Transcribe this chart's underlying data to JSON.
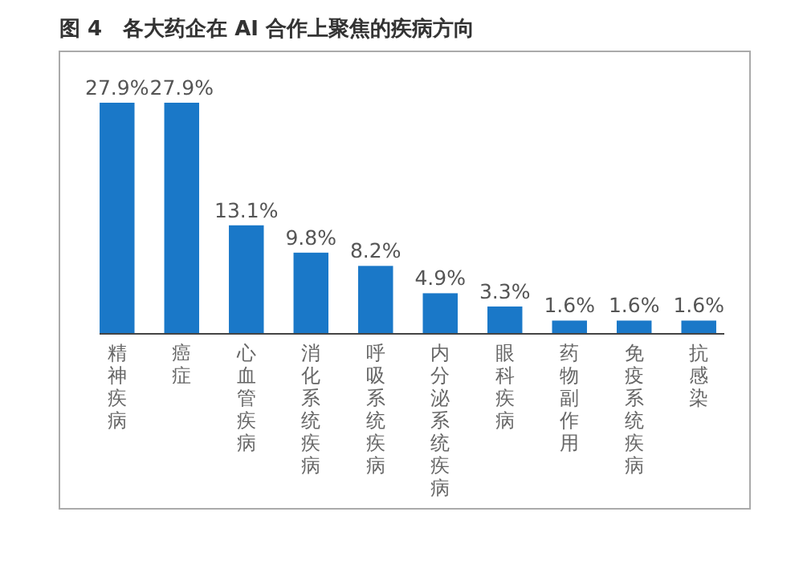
{
  "chart_data": {
    "type": "bar",
    "title": "图 4　各大药企在 AI 合作上聚焦的疾病方向",
    "categories": [
      "精神疾病",
      "癌症",
      "心血管疾病",
      "消化系统疾病",
      "呼吸系统疾病",
      "内分泌系统疾病",
      "眼科疾病",
      "药物副作用",
      "免疫系统疾病",
      "抗感染"
    ],
    "values": [
      27.9,
      27.9,
      13.1,
      9.8,
      8.2,
      4.9,
      3.3,
      1.6,
      1.6,
      1.6
    ],
    "value_labels": [
      "27.9%",
      "27.9%",
      "13.1%",
      "9.8%",
      "8.2%",
      "4.9%",
      "3.3%",
      "1.6%",
      "1.6%",
      "1.6%"
    ],
    "color": "#1a78c8"
  }
}
